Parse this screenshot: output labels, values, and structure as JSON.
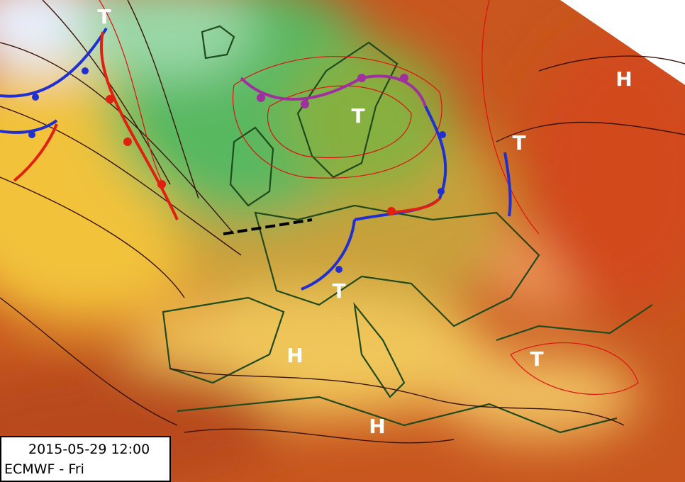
{
  "map": {
    "pressure_centers": [
      "T",
      "T",
      "T",
      "T",
      "T",
      "H",
      "H",
      "H"
    ],
    "info": {
      "datetime": "2015-05-29 12:00",
      "model": "ECMWF - Fri"
    }
  }
}
